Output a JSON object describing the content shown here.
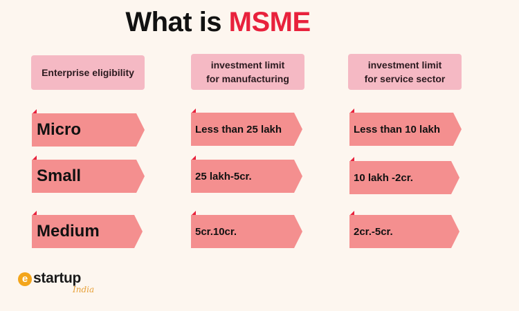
{
  "title": {
    "prefix": "What is ",
    "accent": "MSME"
  },
  "headers": [
    {
      "line1": "Enterprise eligibility",
      "line2": ""
    },
    {
      "line1": "investment limit",
      "line2": "for manufacturing"
    },
    {
      "line1": "investment limit",
      "line2": "for service sector"
    }
  ],
  "rows": [
    {
      "category": "Micro",
      "manufacturing": "Less than 25 lakh",
      "service": "Less than 10 lakh"
    },
    {
      "category": "Small",
      "manufacturing": "25 lakh-5cr.",
      "service": "10 lakh -2cr."
    },
    {
      "category": "Medium",
      "manufacturing": "5cr.10cr.",
      "service": "2cr.-5cr."
    }
  ],
  "logo": {
    "badge": "e",
    "text": "startup",
    "script": "India"
  },
  "colors": {
    "accent": "#e8213c",
    "header_bg": "#f5b9c4",
    "arrow_bg": "#f48f8f",
    "page_bg": "#fdf6ef"
  }
}
